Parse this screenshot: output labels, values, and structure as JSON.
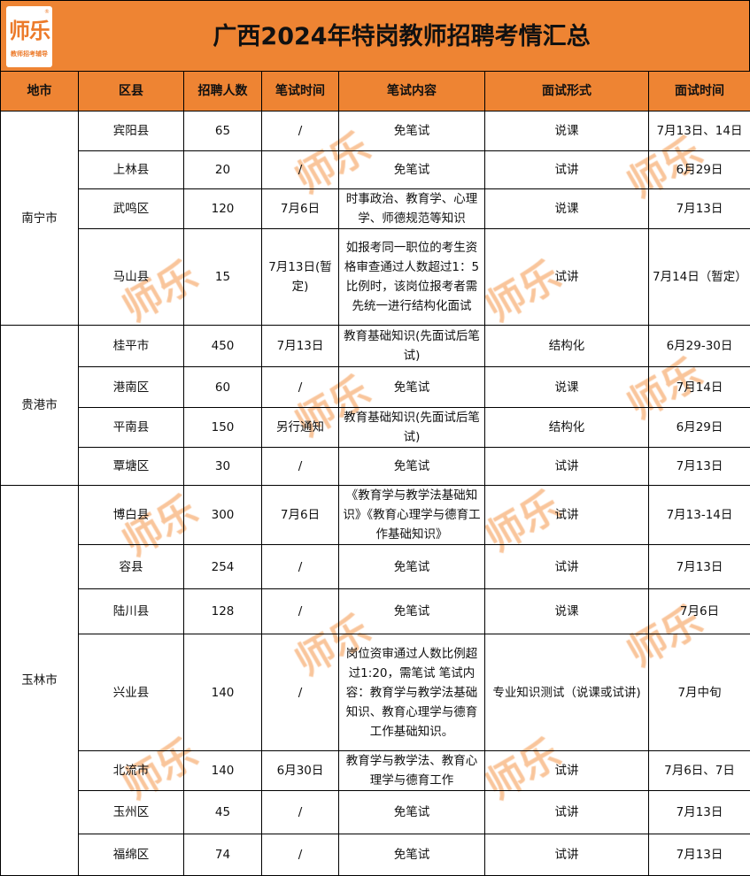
{
  "logo": {
    "text": "师乐",
    "subtitle": "教师招考辅导",
    "mark": "®"
  },
  "title": "广西2024年特岗教师招聘考情汇总",
  "headers": [
    "地市",
    "区县",
    "招聘人数",
    "笔试时间",
    "笔试内容",
    "面试形式",
    "面试时间"
  ],
  "colors": {
    "header_bg": "#ee8433",
    "watermark": "#f7b27a"
  },
  "watermark": "师乐",
  "groups": [
    {
      "city": "南宁市",
      "rows": [
        {
          "county": "宾阳县",
          "count": "65",
          "exam_time": "/",
          "exam_content": "免笔试",
          "interview_form": "说课",
          "interview_time": "7月13日、14日"
        },
        {
          "county": "上林县",
          "count": "20",
          "exam_time": "/",
          "exam_content": "免笔试",
          "interview_form": "试讲",
          "interview_time": "6月29日"
        },
        {
          "county": "武鸣区",
          "count": "120",
          "exam_time": "7月6日",
          "exam_content": "时事政治、教育学、心理学、师德规范等知识",
          "interview_form": "说课",
          "interview_time": "7月13日"
        },
        {
          "county": "马山县",
          "count": "15",
          "exam_time": "7月13日(暂定)",
          "exam_content": "如报考同一职位的考生资格审查通过人数超过1：5比例时，该岗位报考者需先统一进行结构化面试",
          "interview_form": "试讲",
          "interview_time": "7月14日（暂定）"
        }
      ]
    },
    {
      "city": "贵港市",
      "rows": [
        {
          "county": "桂平市",
          "count": "450",
          "exam_time": "7月13日",
          "exam_content": "教育基础知识(先面试后笔试)",
          "interview_form": "结构化",
          "interview_time": "6月29-30日"
        },
        {
          "county": "港南区",
          "count": "60",
          "exam_time": "/",
          "exam_content": "免笔试",
          "interview_form": "说课",
          "interview_time": "7月14日"
        },
        {
          "county": "平南县",
          "count": "150",
          "exam_time": "另行通知",
          "exam_content": "教育基础知识(先面试后笔试)",
          "interview_form": "结构化",
          "interview_time": "6月29日"
        },
        {
          "county": "覃塘区",
          "count": "30",
          "exam_time": "/",
          "exam_content": "免笔试",
          "interview_form": "试讲",
          "interview_time": "7月13日"
        }
      ]
    },
    {
      "city": "玉林市",
      "rows": [
        {
          "county": "博白县",
          "count": "300",
          "exam_time": "7月6日",
          "exam_content": "《教育学与教学法基础知识》《教育心理学与德育工作基础知识》",
          "interview_form": "试讲",
          "interview_time": "7月13-14日"
        },
        {
          "county": "容县",
          "count": "254",
          "exam_time": "/",
          "exam_content": "免笔试",
          "interview_form": "试讲",
          "interview_time": "7月13日"
        },
        {
          "county": "陆川县",
          "count": "128",
          "exam_time": "/",
          "exam_content": "免笔试",
          "interview_form": "说课",
          "interview_time": "7月6日"
        },
        {
          "county": "兴业县",
          "count": "140",
          "exam_time": "/",
          "exam_content": "岗位资审通过人数比例超过1:20，需笔试 笔试内容：教育学与教学法基础知识、教育心理学与德育工作基础知识。",
          "interview_form": "专业知识测试（说课或试讲)",
          "interview_time": "7月中旬"
        },
        {
          "county": "北流市",
          "count": "140",
          "exam_time": "6月30日",
          "exam_content": "教育学与教学法、教育心理学与德育工作",
          "interview_form": "试讲",
          "interview_time": "7月6日、7日"
        },
        {
          "county": "玉州区",
          "count": "45",
          "exam_time": "/",
          "exam_content": "免笔试",
          "interview_form": "试讲",
          "interview_time": "7月13日"
        },
        {
          "county": "福绵区",
          "count": "74",
          "exam_time": "/",
          "exam_content": "免笔试",
          "interview_form": "试讲",
          "interview_time": "7月13日"
        }
      ]
    }
  ]
}
